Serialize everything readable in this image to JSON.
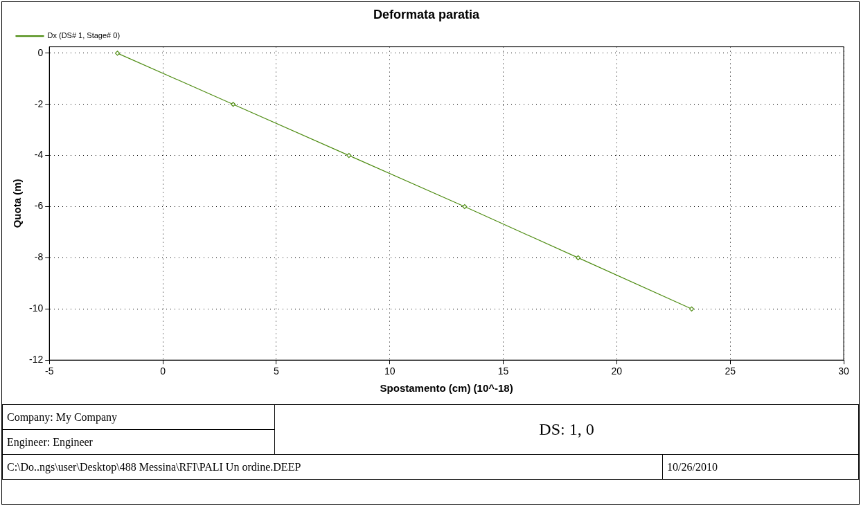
{
  "chart_data": {
    "type": "line",
    "title": "Deformata paratia",
    "xlabel": "Spostamento (cm) (10^-18)",
    "ylabel": "Quota (m)",
    "x": [
      -2,
      3.1,
      8.2,
      13.3,
      18.3,
      23.3
    ],
    "series": [
      {
        "name": "Dx (DS# 1, Stage# 0)",
        "color": "#4e8c12",
        "values": [
          0,
          -2,
          -4,
          -6,
          -8,
          -10
        ]
      }
    ],
    "xlim": [
      -5,
      30
    ],
    "xticks": [
      -5,
      0,
      5,
      10,
      15,
      20,
      25,
      30
    ],
    "ylim": [
      -12,
      0.25
    ],
    "yticks": [
      0,
      -2,
      -4,
      -6,
      -8,
      -10,
      -12
    ],
    "grid": true,
    "legend": "top left",
    "marker": "diamond",
    "line_style": "solid",
    "annotations": [
      "Company: My Company",
      "Engineer: Engineer",
      "DS: 1, 0",
      "C:\\Do..ngs\\user\\Desktop\\488 Messina\\RFI\\PALI Un ordine.DEEP",
      "10/26/2010"
    ]
  }
}
